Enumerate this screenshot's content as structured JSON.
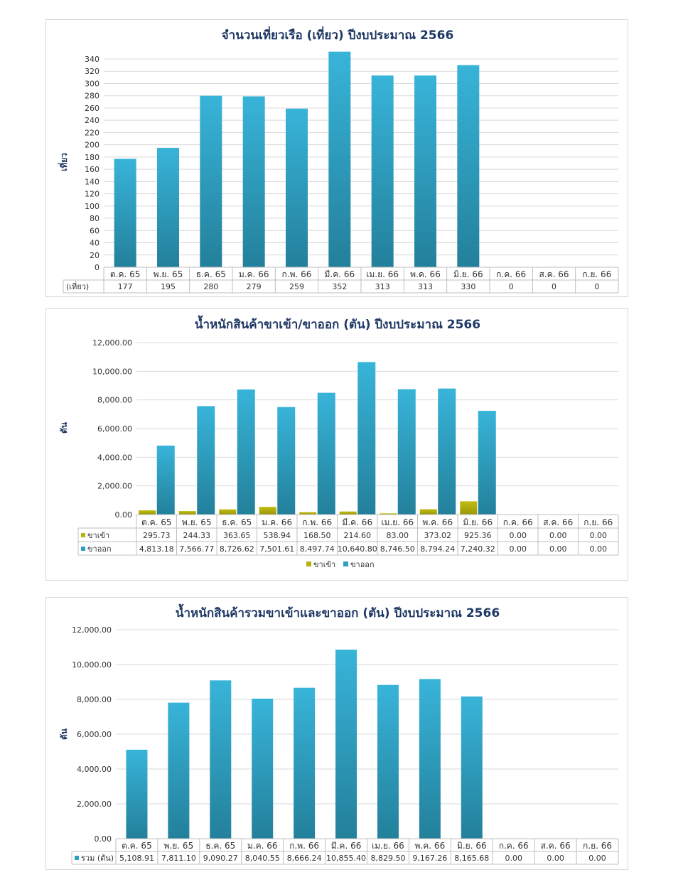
{
  "chart_data": [
    {
      "type": "bar",
      "title": "จำนวนเที่ยวเรือ (เที่ยว) ปีงบประมาณ 2566",
      "ylabel": "เที่ยว",
      "ylim": [
        0,
        340
      ],
      "ystep": 20,
      "grid": true,
      "categories": [
        "ต.ค. 65",
        "พ.ย. 65",
        "ธ.ค. 65",
        "ม.ค. 66",
        "ก.พ. 66",
        "มี.ค. 66",
        "เม.ย. 66",
        "พ.ค. 66",
        "มิ.ย. 66",
        "ก.ค. 66",
        "ส.ค. 66",
        "ก.ย. 66"
      ],
      "series": [
        {
          "name": "(เที่ยว)",
          "values": [
            177,
            195,
            280,
            279,
            259,
            352,
            313,
            313,
            330,
            0,
            0,
            0
          ],
          "color": "#2e9fc4"
        }
      ],
      "table_labels": [
        "177",
        "195",
        "280",
        "279",
        "259",
        "352",
        "313",
        "313",
        "330",
        "0",
        "0",
        "0"
      ]
    },
    {
      "type": "bar",
      "title": "น้ำหนักสินค้าขาเข้า/ขาออก (ตัน) ปีงบประมาณ 2566",
      "ylabel": "ตัน",
      "ylim": [
        0,
        12000
      ],
      "ystep": 2000,
      "grid": true,
      "legend": "bottom",
      "categories": [
        "ต.ค. 65",
        "พ.ย. 65",
        "ธ.ค. 65",
        "ม.ค. 66",
        "ก.พ. 66",
        "มี.ค. 66",
        "เม.ย. 66",
        "พ.ค. 66",
        "มิ.ย. 66",
        "ก.ค. 66",
        "ส.ค. 66",
        "ก.ย. 66"
      ],
      "series": [
        {
          "name": "ขาเข้า",
          "values": [
            295.73,
            244.33,
            363.65,
            538.94,
            168.5,
            214.6,
            83.0,
            373.02,
            925.36,
            0,
            0,
            0
          ],
          "color": "#b5b10d",
          "labels": [
            "295.73",
            "244.33",
            "363.65",
            "538.94",
            "168.50",
            "214.60",
            "83.00",
            "373.02",
            "925.36",
            "0.00",
            "0.00",
            "0.00"
          ]
        },
        {
          "name": "ขาออก",
          "values": [
            4813.18,
            7566.77,
            8726.62,
            7501.61,
            8497.74,
            10640.8,
            8746.5,
            8794.24,
            7240.32,
            0,
            0,
            0
          ],
          "color": "#2e9fc4",
          "labels": [
            "4,813.18",
            "7,566.77",
            "8,726.62",
            "7,501.61",
            "8,497.74",
            "10,640.80",
            "8,746.50",
            "8,794.24",
            "7,240.32",
            "0.00",
            "0.00",
            "0.00"
          ]
        }
      ]
    },
    {
      "type": "bar",
      "title": "น้ำหนักสินค้ารวมขาเข้าและขาออก (ตัน) ปีงบประมาณ 2566",
      "ylabel": "ตัน",
      "ylim": [
        0,
        12000
      ],
      "ystep": 2000,
      "grid": true,
      "categories": [
        "ต.ค. 65",
        "พ.ย. 65",
        "ธ.ค. 65",
        "ม.ค. 66",
        "ก.พ. 66",
        "มี.ค. 66",
        "เม.ย. 66",
        "พ.ค. 66",
        "มิ.ย. 66",
        "ก.ค. 66",
        "ส.ค. 66",
        "ก.ย. 66"
      ],
      "series": [
        {
          "name": "รวม (ตัน)",
          "values": [
            5108.91,
            7811.1,
            9090.27,
            8040.55,
            8666.24,
            10855.4,
            8829.5,
            9167.26,
            8165.68,
            0,
            0,
            0
          ],
          "color": "#2e9fc4",
          "labels": [
            "5,108.91",
            "7,811.10",
            "9,090.27",
            "8,040.55",
            "8,666.24",
            "10,855.40",
            "8,829.50",
            "9,167.26",
            "8,165.68",
            "0.00",
            "0.00",
            "0.00"
          ]
        }
      ]
    }
  ]
}
